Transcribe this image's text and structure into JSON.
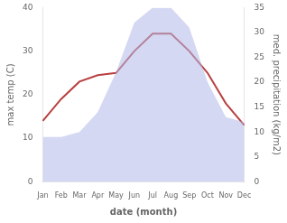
{
  "chart_data": {
    "type": "line",
    "categories": [
      "Jan",
      "Feb",
      "Mar",
      "Apr",
      "May",
      "Jun",
      "Jul",
      "Aug",
      "Sep",
      "Oct",
      "Nov",
      "Dec"
    ],
    "xlabel": "date (month)",
    "ylabel": "max temp (C)",
    "y2label": "med. precipitation (kg/m2)",
    "series": [
      {
        "type": "area",
        "axis": "y2",
        "color": "#b0b8e8",
        "values": [
          9,
          9,
          10,
          14,
          22,
          32,
          35,
          35,
          31,
          20,
          13,
          12
        ]
      },
      {
        "type": "line",
        "color": "#b94040",
        "values": [
          14,
          19,
          23,
          24.5,
          25,
          30,
          34,
          34,
          30,
          25,
          18,
          13
        ]
      }
    ],
    "ylim": [
      0,
      40
    ],
    "yticks": [
      0,
      10,
      20,
      30,
      40
    ],
    "y2lim": [
      0,
      35
    ],
    "y2ticks": [
      0,
      5,
      10,
      15,
      20,
      25,
      30,
      35
    ],
    "grid": false
  }
}
